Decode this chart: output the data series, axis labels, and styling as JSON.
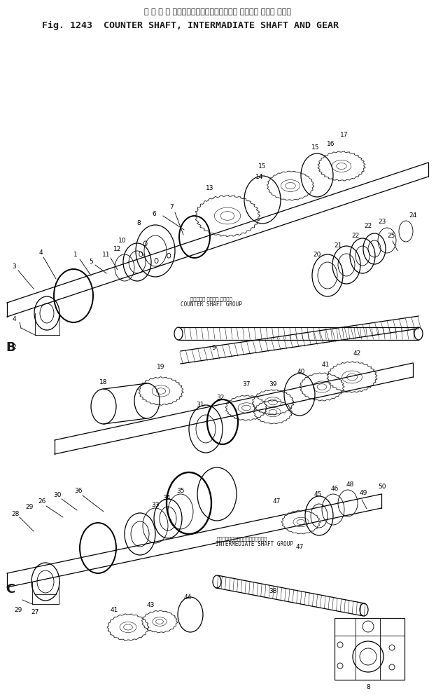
{
  "title_japanese": "カ ウ ン タ シャフト、インターメジェート シャフト および ギヤー",
  "title_english": "Fig. 1243  COUNTER SHAFT, INTERMADIATE SHAFT AND GEAR",
  "bg_color": "#ffffff",
  "drawing_color": "#1a1a1a",
  "counter_shaft_label_jp": "カウンター シャフト グループ",
  "counter_shaft_label_en": "COUNTER SHAFT GROUP",
  "intermediate_shaft_label_jp": "インタァメジェートシャフトグループ",
  "intermediate_shaft_label_en": "INTERMEDIATE SHAFT GROUP"
}
